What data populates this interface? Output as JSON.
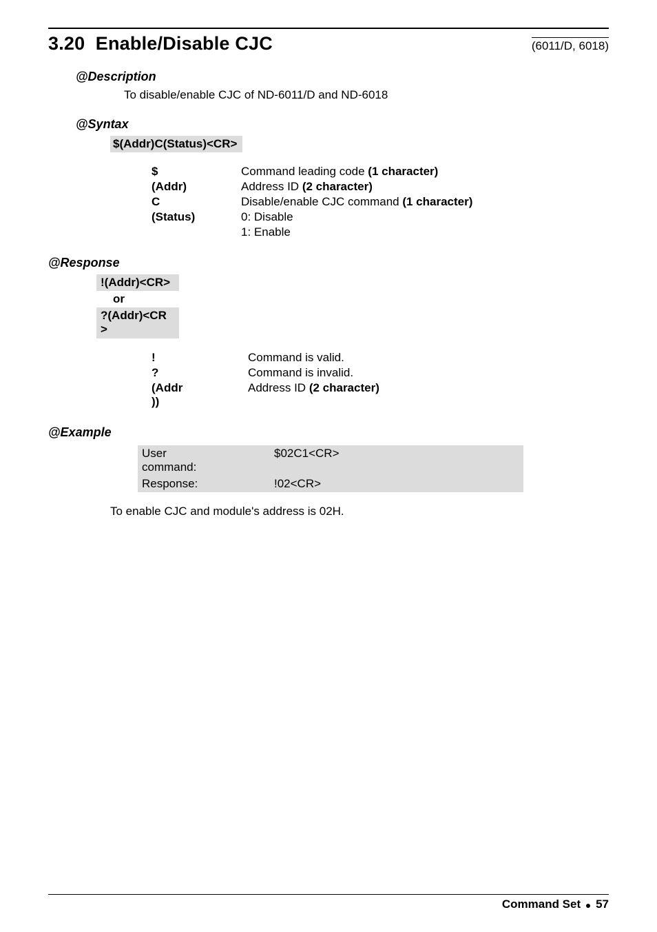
{
  "header": {
    "section_number": "3.20",
    "section_title": "Enable/Disable CJC",
    "note": "(6011/D, 6018)"
  },
  "description": {
    "heading": "@Description",
    "text": "To disable/enable CJC of ND-6011/D and ND-6018"
  },
  "syntax": {
    "heading": "@Syntax",
    "box": "$(Addr)C(Status)<CR>",
    "rows": [
      {
        "key": "$",
        "desc_pre": "Command leading code ",
        "desc_bold": "(1 character)"
      },
      {
        "key": "(Addr)",
        "desc_pre": "Address ID ",
        "desc_bold": "(2 character)"
      },
      {
        "key": "C",
        "desc_pre": "Disable/enable CJC command ",
        "desc_bold": "(1 character)"
      },
      {
        "key": "(Status)",
        "desc_pre": "0: Disable",
        "desc_bold": ""
      },
      {
        "key": "",
        "desc_pre": "1: Enable",
        "desc_bold": ""
      }
    ]
  },
  "response": {
    "heading": "@Response",
    "box1": "!(Addr)<CR>",
    "or": "or",
    "box2_line1": "?(Addr)<CR",
    "box2_line2": ">",
    "rows": [
      {
        "key": "!",
        "desc_pre": "Command is valid.",
        "desc_bold": ""
      },
      {
        "key": "?",
        "desc_pre": "Command is invalid.",
        "desc_bold": ""
      },
      {
        "key_line1": "(Addr",
        "key_line2": "))",
        "desc_pre": "Address ID ",
        "desc_bold": "(2 character)"
      }
    ]
  },
  "example": {
    "heading": "@Example",
    "rows": [
      {
        "label_line1": "User",
        "label_line2": "command:",
        "value": "$02C1<CR>"
      },
      {
        "label_line1": "Response:",
        "label_line2": "",
        "value": "!02<CR>"
      }
    ],
    "after": "To enable CJC and module's address is 02H."
  },
  "footer": {
    "left": "Command Set",
    "page": "57"
  }
}
